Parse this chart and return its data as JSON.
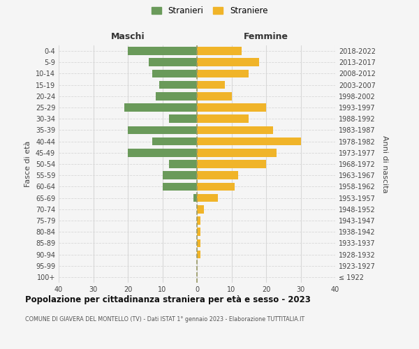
{
  "age_groups": [
    "100+",
    "95-99",
    "90-94",
    "85-89",
    "80-84",
    "75-79",
    "70-74",
    "65-69",
    "60-64",
    "55-59",
    "50-54",
    "45-49",
    "40-44",
    "35-39",
    "30-34",
    "25-29",
    "20-24",
    "15-19",
    "10-14",
    "5-9",
    "0-4"
  ],
  "birth_years": [
    "≤ 1922",
    "1923-1927",
    "1928-1932",
    "1933-1937",
    "1938-1942",
    "1943-1947",
    "1948-1952",
    "1953-1957",
    "1958-1962",
    "1963-1967",
    "1968-1972",
    "1973-1977",
    "1978-1982",
    "1983-1987",
    "1988-1992",
    "1993-1997",
    "1998-2002",
    "2003-2007",
    "2008-2012",
    "2013-2017",
    "2018-2022"
  ],
  "maschi": [
    0,
    0,
    0,
    0,
    0,
    0,
    0,
    1,
    10,
    10,
    8,
    20,
    13,
    20,
    8,
    21,
    12,
    11,
    13,
    14,
    20
  ],
  "femmine": [
    0,
    0,
    1,
    1,
    1,
    1,
    2,
    6,
    11,
    12,
    20,
    23,
    30,
    22,
    15,
    20,
    10,
    8,
    15,
    18,
    13
  ],
  "color_maschi": "#6a9a5a",
  "color_femmine": "#f0b429",
  "bg_color": "#f5f5f5",
  "title": "Popolazione per cittadinanza straniera per età e sesso - 2023",
  "subtitle": "COMUNE DI GIAVERA DEL MONTELLO (TV) - Dati ISTAT 1° gennaio 2023 - Elaborazione TUTTITALIA.IT",
  "ylabel_left": "Fasce di età",
  "ylabel_right": "Anni di nascita",
  "label_maschi": "Maschi",
  "label_femmine": "Femmine",
  "legend_maschi": "Stranieri",
  "legend_femmine": "Straniere",
  "xlim": 40,
  "grid_color": "#d8d8d8",
  "dashed_color": "#999966"
}
